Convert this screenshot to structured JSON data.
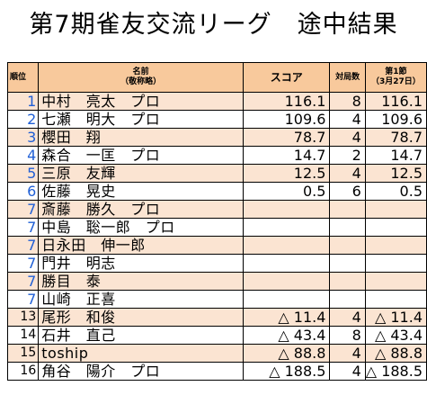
{
  "title": "第7期雀友交流リーグ　途中結果",
  "headers": {
    "rank": "順位",
    "name_line1": "名前",
    "name_line2": "（敬称略）",
    "score": "スコア",
    "games": "対局数",
    "section_line1": "第1節",
    "section_line2": "（3月27日）"
  },
  "rows": [
    {
      "rank": "1",
      "name": "中村　亮太　プロ",
      "score": "116.1",
      "games": "8",
      "sec1": "116.1"
    },
    {
      "rank": "2",
      "name": "七瀬　明大　プロ",
      "score": "109.6",
      "games": "4",
      "sec1": "109.6"
    },
    {
      "rank": "3",
      "name": "櫻田　翔",
      "score": "78.7",
      "games": "4",
      "sec1": "78.7"
    },
    {
      "rank": "4",
      "name": "森合　一匡　プロ",
      "score": "14.7",
      "games": "2",
      "sec1": "14.7"
    },
    {
      "rank": "5",
      "name": "三原　友輝",
      "score": "12.5",
      "games": "4",
      "sec1": "12.5"
    },
    {
      "rank": "6",
      "name": "佐藤　晃史",
      "score": "0.5",
      "games": "6",
      "sec1": "0.5"
    },
    {
      "rank": "7",
      "name": "斎藤　勝久　プロ",
      "score": "",
      "games": "",
      "sec1": ""
    },
    {
      "rank": "7",
      "name": "中島　聡一郎　プロ",
      "score": "",
      "games": "",
      "sec1": ""
    },
    {
      "rank": "7",
      "name": "日永田　伸一郎",
      "score": "",
      "games": "",
      "sec1": ""
    },
    {
      "rank": "7",
      "name": "門井　明志",
      "score": "",
      "games": "",
      "sec1": ""
    },
    {
      "rank": "7",
      "name": "勝目　泰",
      "score": "",
      "games": "",
      "sec1": ""
    },
    {
      "rank": "7",
      "name": "山崎　正喜",
      "score": "",
      "games": "",
      "sec1": ""
    },
    {
      "rank": "13",
      "name": "尾形　和俊",
      "score": "△ 11.4",
      "games": "4",
      "sec1": "△ 11.4"
    },
    {
      "rank": "14",
      "name": "石井　直己",
      "score": "△ 43.4",
      "games": "8",
      "sec1": "△ 43.4"
    },
    {
      "rank": "15",
      "name": "toship",
      "score": "△ 88.8",
      "games": "4",
      "sec1": "△ 88.8"
    },
    {
      "rank": "16",
      "name": "角谷　陽介　プロ",
      "score": "△ 188.5",
      "games": "4",
      "sec1": "△ 188.5"
    }
  ]
}
